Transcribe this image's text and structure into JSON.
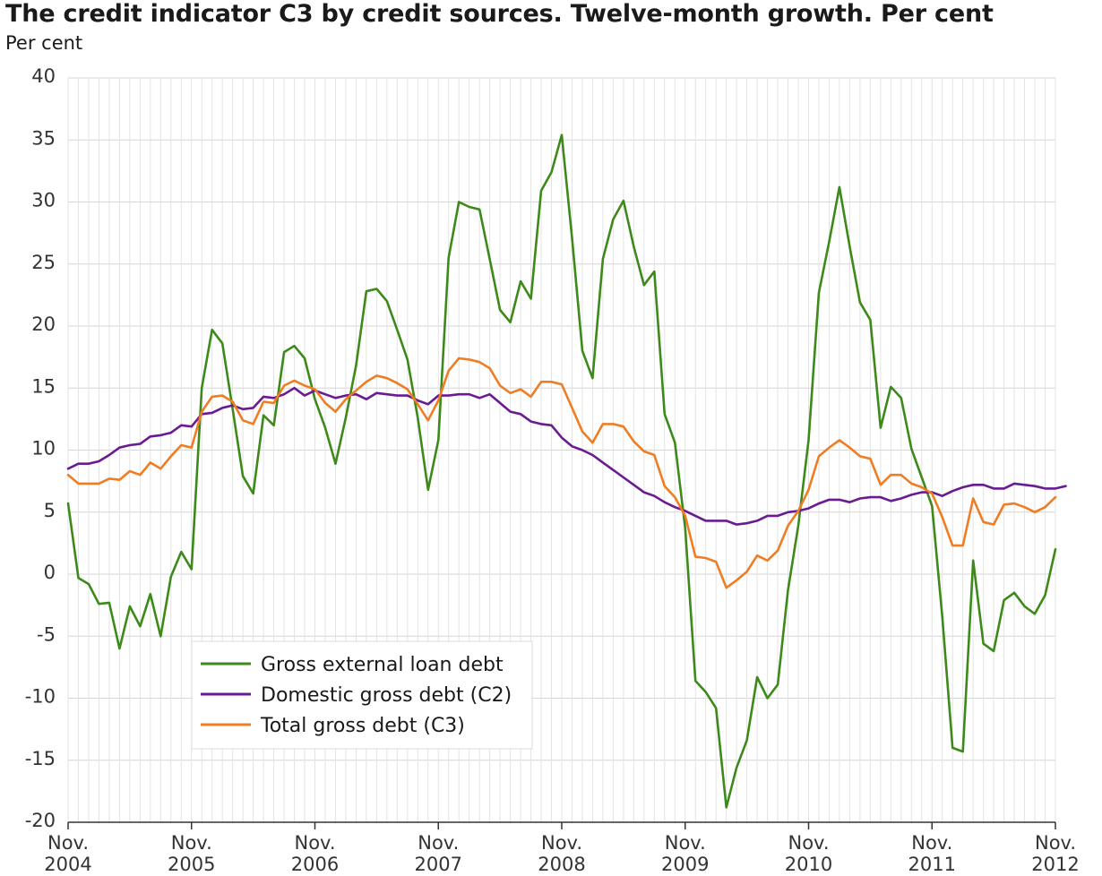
{
  "chart_data": {
    "type": "line",
    "title": "The credit indicator C3 by credit sources. Twelve-month growth. Per cent",
    "ylabel": "Per cent",
    "xlabel": "",
    "ylim": [
      -20,
      40
    ],
    "yticks": [
      40,
      35,
      30,
      25,
      20,
      15,
      10,
      5,
      0,
      -5,
      -10,
      -15,
      -20
    ],
    "grid": true,
    "legend_position": "bottom-left",
    "x_tick_labels": [
      {
        "month": "Nov.",
        "year": "2004"
      },
      {
        "month": "Nov.",
        "year": "2005"
      },
      {
        "month": "Nov.",
        "year": "2006"
      },
      {
        "month": "Nov.",
        "year": "2007"
      },
      {
        "month": "Nov.",
        "year": "2008"
      },
      {
        "month": "Nov.",
        "year": "2009"
      },
      {
        "month": "Nov.",
        "year": "2010"
      },
      {
        "month": "Nov.",
        "year": "2011"
      },
      {
        "month": "Nov.",
        "year": "2012"
      }
    ],
    "x_start": "2004-11",
    "x_end": "2012-11",
    "series": [
      {
        "name": "Gross external loan debt",
        "color": "#3d8a1b",
        "values": [
          5.7,
          -0.3,
          -0.8,
          -2.4,
          -2.3,
          -6.0,
          -2.6,
          -4.2,
          -1.6,
          -5.0,
          -0.2,
          1.8,
          0.4,
          15.0,
          19.7,
          18.6,
          13.3,
          7.9,
          6.5,
          12.8,
          12.0,
          17.9,
          18.4,
          17.4,
          14.1,
          11.8,
          8.9,
          12.6,
          16.8,
          22.8,
          23.0,
          22.0,
          19.7,
          17.3,
          12.6,
          6.8,
          10.8,
          25.5,
          30.0,
          29.6,
          29.4,
          25.4,
          21.3,
          20.3,
          23.6,
          22.2,
          30.9,
          32.4,
          35.4,
          27.1,
          18.0,
          15.8,
          25.4,
          28.6,
          30.1,
          26.4,
          23.3,
          24.4,
          12.9,
          10.6,
          3.7,
          -8.6,
          -9.5,
          -10.8,
          -18.8,
          -15.6,
          -13.4,
          -8.3,
          -10.0,
          -8.9,
          -1.3,
          3.9,
          10.8,
          22.7,
          26.8,
          31.2,
          26.4,
          21.9,
          20.5,
          11.8,
          15.1,
          14.2,
          10.1,
          7.8,
          5.5,
          -3.4,
          -14.0,
          -14.3,
          1.1,
          -5.6,
          -6.2,
          -2.1,
          -1.5,
          -2.6,
          -3.2,
          -1.7,
          2.0
        ]
      },
      {
        "name": "Domestic gross debt (C2)",
        "color": "#6a1b91",
        "values": [
          8.5,
          8.9,
          8.9,
          9.1,
          9.6,
          10.2,
          10.4,
          10.5,
          11.1,
          11.2,
          11.4,
          12.0,
          11.9,
          12.9,
          13.0,
          13.4,
          13.6,
          13.3,
          13.4,
          14.3,
          14.2,
          14.5,
          15.0,
          14.4,
          14.8,
          14.5,
          14.2,
          14.4,
          14.5,
          14.1,
          14.6,
          14.5,
          14.4,
          14.4,
          14.0,
          13.7,
          14.4,
          14.4,
          14.5,
          14.5,
          14.2,
          14.5,
          13.8,
          13.1,
          12.9,
          12.3,
          12.1,
          12.0,
          11.0,
          10.3,
          10.0,
          9.6,
          9.0,
          8.4,
          7.8,
          7.2,
          6.6,
          6.3,
          5.8,
          5.4,
          5.1,
          4.7,
          4.3,
          4.3,
          4.3,
          4.0,
          4.1,
          4.3,
          4.7,
          4.7,
          5.0,
          5.1,
          5.3,
          5.7,
          6.0,
          6.0,
          5.8,
          6.1,
          6.2,
          6.2,
          5.9,
          6.1,
          6.4,
          6.6,
          6.6,
          6.3,
          6.7,
          7.0,
          7.2,
          7.2,
          6.9,
          6.9,
          7.3,
          7.2,
          7.1,
          6.9,
          6.9,
          7.1
        ]
      },
      {
        "name": "Total gross debt (C3)",
        "color": "#ef7d24",
        "values": [
          8.0,
          7.3,
          7.3,
          7.3,
          7.7,
          7.6,
          8.3,
          8.0,
          9.0,
          8.5,
          9.5,
          10.4,
          10.2,
          13.1,
          14.3,
          14.4,
          13.9,
          12.4,
          12.1,
          13.9,
          13.8,
          15.2,
          15.6,
          15.2,
          14.9,
          13.8,
          13.1,
          14.1,
          14.8,
          15.5,
          16.0,
          15.8,
          15.4,
          14.9,
          13.7,
          12.4,
          14.0,
          16.4,
          17.4,
          17.3,
          17.1,
          16.6,
          15.2,
          14.6,
          14.9,
          14.3,
          15.5,
          15.5,
          15.3,
          13.4,
          11.5,
          10.6,
          12.1,
          12.1,
          11.9,
          10.7,
          9.9,
          9.6,
          7.1,
          6.2,
          4.7,
          1.4,
          1.3,
          1.0,
          -1.1,
          -0.5,
          0.2,
          1.5,
          1.1,
          1.9,
          3.9,
          5.1,
          6.8,
          9.5,
          10.2,
          10.8,
          10.2,
          9.5,
          9.3,
          7.2,
          8.0,
          8.0,
          7.3,
          7.0,
          6.5,
          4.6,
          2.3,
          2.3,
          6.1,
          4.2,
          4.0,
          5.6,
          5.7,
          5.4,
          5.0,
          5.4,
          6.2
        ]
      }
    ]
  }
}
